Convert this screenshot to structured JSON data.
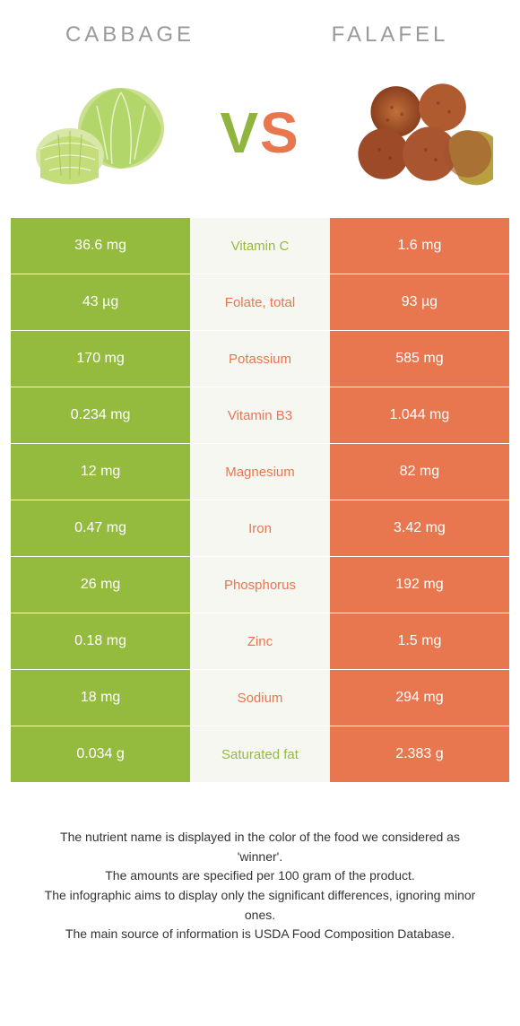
{
  "colors": {
    "left": "#95bb3e",
    "right": "#e8774f",
    "mid_bg": "#f7f7f2",
    "header_text": "#9a9a9a",
    "footnote_text": "#333333"
  },
  "header": {
    "left_title": "Cabbage",
    "right_title": "Falafel",
    "vs_v": "V",
    "vs_s": "S"
  },
  "rows": [
    {
      "left": "36.6 mg",
      "label": "Vitamin C",
      "right": "1.6 mg",
      "winner": "left"
    },
    {
      "left": "43 µg",
      "label": "Folate, total",
      "right": "93 µg",
      "winner": "right"
    },
    {
      "left": "170 mg",
      "label": "Potassium",
      "right": "585 mg",
      "winner": "right"
    },
    {
      "left": "0.234 mg",
      "label": "Vitamin B3",
      "right": "1.044 mg",
      "winner": "right"
    },
    {
      "left": "12 mg",
      "label": "Magnesium",
      "right": "82 mg",
      "winner": "right"
    },
    {
      "left": "0.47 mg",
      "label": "Iron",
      "right": "3.42 mg",
      "winner": "right"
    },
    {
      "left": "26 mg",
      "label": "Phosphorus",
      "right": "192 mg",
      "winner": "right"
    },
    {
      "left": "0.18 mg",
      "label": "Zinc",
      "right": "1.5 mg",
      "winner": "right"
    },
    {
      "left": "18 mg",
      "label": "Sodium",
      "right": "294 mg",
      "winner": "right"
    },
    {
      "left": "0.034 g",
      "label": "Saturated fat",
      "right": "2.383 g",
      "winner": "left"
    }
  ],
  "footnotes": [
    "The nutrient name is displayed in the color of the food we considered as 'winner'.",
    "The amounts are specified per 100 gram of the product.",
    "The infographic aims to display only the significant differences, ignoring minor ones.",
    "The main source of information is USDA Food Composition Database."
  ]
}
